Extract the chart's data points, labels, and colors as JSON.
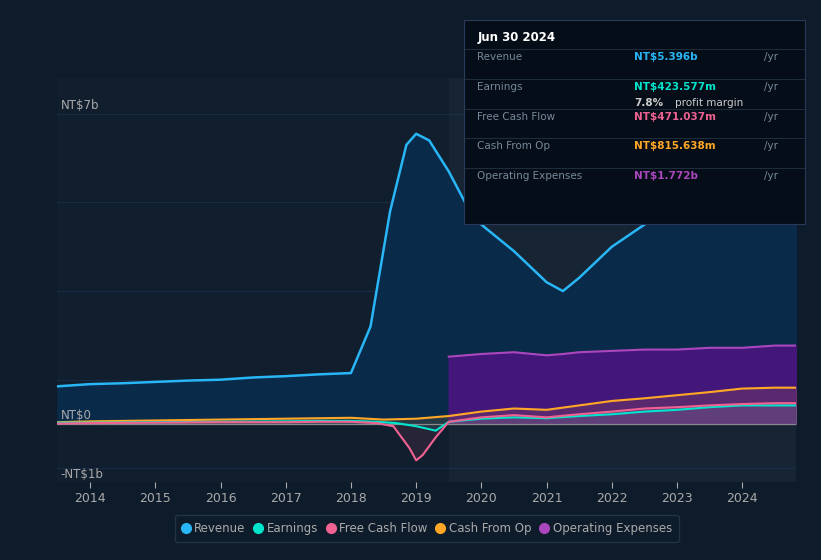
{
  "background_color": "#0d1b2a",
  "plot_bg_color": "#111e2d",
  "title": "Jun 30 2024",
  "tooltip": {
    "Revenue": {
      "value": "NT$5.396b",
      "color": "#29b6f6"
    },
    "Earnings": {
      "value": "NT$423.577m",
      "color": "#00e5cc"
    },
    "profit_margin": {
      "pct": "7.8%",
      "label": "profit margin"
    },
    "Free Cash Flow": {
      "value": "NT$471.037m",
      "color": "#f06292"
    },
    "Cash From Op": {
      "value": "NT$815.638m",
      "color": "#ffa726"
    },
    "Operating Expenses": {
      "value": "NT$1.772b",
      "color": "#ab47bc"
    }
  },
  "ylabel_top": "NT$7b",
  "ylabel_zero": "NT$0",
  "ylabel_neg": "-NT$1b",
  "xlim": [
    2013.5,
    2024.83
  ],
  "ylim": [
    -1.3,
    7.8
  ],
  "xticks": [
    2014,
    2015,
    2016,
    2017,
    2018,
    2019,
    2020,
    2021,
    2022,
    2023,
    2024
  ],
  "grid_color": "#1e3a5f",
  "legend_items": [
    {
      "label": "Revenue",
      "color": "#29b6f6"
    },
    {
      "label": "Earnings",
      "color": "#00e5cc"
    },
    {
      "label": "Free Cash Flow",
      "color": "#f06292"
    },
    {
      "label": "Cash From Op",
      "color": "#ffa726"
    },
    {
      "label": "Operating Expenses",
      "color": "#ab47bc"
    }
  ],
  "revenue_x": [
    2013.5,
    2014.0,
    2014.5,
    2015.0,
    2015.5,
    2016.0,
    2016.5,
    2017.0,
    2017.5,
    2018.0,
    2018.3,
    2018.6,
    2018.85,
    2019.0,
    2019.2,
    2019.5,
    2019.75,
    2020.0,
    2020.25,
    2020.5,
    2021.0,
    2021.25,
    2021.5,
    2022.0,
    2022.5,
    2023.0,
    2023.25,
    2023.5,
    2024.0,
    2024.5,
    2024.83
  ],
  "revenue_y": [
    0.85,
    0.9,
    0.92,
    0.95,
    0.98,
    1.0,
    1.05,
    1.08,
    1.12,
    1.15,
    2.2,
    4.8,
    6.3,
    6.55,
    6.4,
    5.7,
    5.0,
    4.5,
    4.2,
    3.9,
    3.2,
    3.0,
    3.3,
    4.0,
    4.5,
    5.0,
    5.3,
    5.1,
    5.0,
    5.3,
    5.4
  ],
  "revenue_fill_color": "#0a2a4a",
  "revenue_line_color": "#29b6f6",
  "earnings_x": [
    2013.5,
    2014.0,
    2015.0,
    2016.0,
    2017.0,
    2017.5,
    2018.0,
    2018.4,
    2018.7,
    2019.0,
    2019.3,
    2019.5,
    2020.0,
    2020.5,
    2021.0,
    2021.5,
    2022.0,
    2022.5,
    2023.0,
    2023.5,
    2024.0,
    2024.5,
    2024.83
  ],
  "earnings_y": [
    0.03,
    0.03,
    0.04,
    0.05,
    0.06,
    0.07,
    0.07,
    0.05,
    0.02,
    -0.05,
    -0.15,
    0.05,
    0.12,
    0.15,
    0.13,
    0.18,
    0.22,
    0.28,
    0.32,
    0.38,
    0.42,
    0.42,
    0.42
  ],
  "earnings_line_color": "#00e5cc",
  "fcf_x": [
    2013.5,
    2014.0,
    2015.0,
    2016.0,
    2017.0,
    2017.5,
    2018.0,
    2018.4,
    2018.65,
    2018.9,
    2019.0,
    2019.1,
    2019.3,
    2019.5,
    2020.0,
    2020.5,
    2021.0,
    2021.5,
    2022.0,
    2022.5,
    2023.0,
    2023.5,
    2024.0,
    2024.5,
    2024.83
  ],
  "fcf_y": [
    0.01,
    0.02,
    0.03,
    0.04,
    0.04,
    0.05,
    0.05,
    0.02,
    -0.05,
    -0.55,
    -0.82,
    -0.7,
    -0.3,
    0.05,
    0.15,
    0.2,
    0.15,
    0.22,
    0.28,
    0.35,
    0.38,
    0.42,
    0.45,
    0.47,
    0.47
  ],
  "fcf_line_color": "#f06292",
  "cashop_x": [
    2013.5,
    2014.0,
    2015.0,
    2016.0,
    2017.0,
    2018.0,
    2018.5,
    2019.0,
    2019.5,
    2020.0,
    2020.5,
    2021.0,
    2021.5,
    2022.0,
    2022.5,
    2023.0,
    2023.5,
    2024.0,
    2024.5,
    2024.83
  ],
  "cashop_y": [
    0.04,
    0.06,
    0.08,
    0.1,
    0.12,
    0.14,
    0.1,
    0.12,
    0.18,
    0.28,
    0.35,
    0.32,
    0.42,
    0.52,
    0.58,
    0.65,
    0.72,
    0.8,
    0.82,
    0.82
  ],
  "cashop_line_color": "#ffa726",
  "opex_x": [
    2019.5,
    2019.75,
    2020.0,
    2020.5,
    2021.0,
    2021.25,
    2021.5,
    2022.0,
    2022.5,
    2023.0,
    2023.5,
    2024.0,
    2024.5,
    2024.83
  ],
  "opex_y": [
    1.52,
    1.55,
    1.58,
    1.62,
    1.55,
    1.58,
    1.62,
    1.65,
    1.68,
    1.68,
    1.72,
    1.72,
    1.77,
    1.77
  ],
  "opex_fill_color": "#4a1580",
  "opex_line_color": "#ab47bc",
  "shaded_x_start": 2019.5,
  "shaded_color": "#182535",
  "zero_line_color": "#888888",
  "ytick_label_color": "#aaaaaa",
  "xtick_label_color": "#aaaaaa",
  "legend_bg": "#0d1b2a",
  "legend_edge": "#2a3a4a",
  "tooltip_bg": "#050e18",
  "tooltip_border": "#2a3a5a",
  "tooltip_label_color": "#778899",
  "tooltip_value_white": "#cccccc",
  "grid_lines_y": [
    7.0,
    5.0,
    3.0,
    1.0,
    -1.0
  ]
}
